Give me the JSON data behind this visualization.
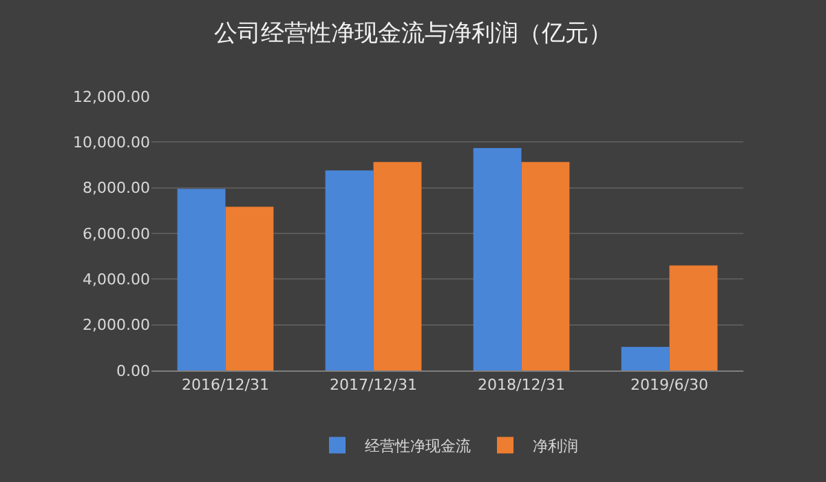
{
  "chart_data": {
    "type": "bar",
    "title": "公司经营性净现金流与净利润（亿元）",
    "categories": [
      "2016/12/31",
      "2017/12/31",
      "2018/12/31",
      "2019/6/30"
    ],
    "series": [
      {
        "name": "经营性净现金流",
        "color": "#4a86d8",
        "values": [
          7950,
          8760,
          9740,
          1030
        ]
      },
      {
        "name": "净利润",
        "color": "#ed7d31",
        "values": [
          7170,
          9130,
          9130,
          4600
        ]
      }
    ],
    "ylim": [
      0,
      12000
    ],
    "yticks": [
      {
        "value": 0,
        "label": "0.00"
      },
      {
        "value": 2000,
        "label": "2,000.00"
      },
      {
        "value": 4000,
        "label": "4,000.00"
      },
      {
        "value": 6000,
        "label": "6,000.00"
      },
      {
        "value": 8000,
        "label": "8,000.00"
      },
      {
        "value": 10000,
        "label": "10,000.00"
      },
      {
        "value": 12000,
        "label": "12,000.00"
      }
    ],
    "grid": "y",
    "legend": "bottom"
  }
}
